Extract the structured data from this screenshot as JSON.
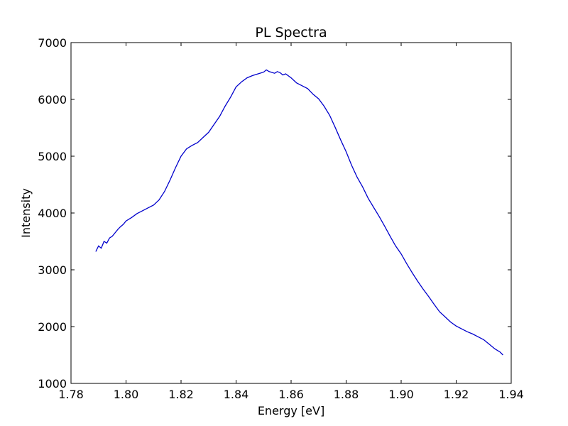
{
  "chart_data": {
    "type": "line",
    "title": "PL Spectra",
    "xlabel": "Energy [eV]",
    "ylabel": "Intensity",
    "xlim": [
      1.78,
      1.94
    ],
    "ylim": [
      1000,
      7000
    ],
    "xticks": [
      "1.78",
      "1.80",
      "1.82",
      "1.84",
      "1.86",
      "1.88",
      "1.90",
      "1.92",
      "1.94"
    ],
    "yticks": [
      "1000",
      "2000",
      "3000",
      "4000",
      "5000",
      "6000",
      "7000"
    ],
    "grid": false,
    "line_color": "#0000cc",
    "series": [
      {
        "x": [
          1.789,
          1.79,
          1.791,
          1.792,
          1.793,
          1.794,
          1.795,
          1.796,
          1.797,
          1.798,
          1.799,
          1.8,
          1.802,
          1.804,
          1.806,
          1.808,
          1.81,
          1.812,
          1.814,
          1.816,
          1.818,
          1.82,
          1.822,
          1.824,
          1.826,
          1.828,
          1.83,
          1.832,
          1.834,
          1.836,
          1.838,
          1.84,
          1.842,
          1.844,
          1.846,
          1.848,
          1.85,
          1.851,
          1.852,
          1.854,
          1.855,
          1.856,
          1.857,
          1.858,
          1.86,
          1.862,
          1.864,
          1.866,
          1.868,
          1.87,
          1.872,
          1.874,
          1.876,
          1.878,
          1.88,
          1.882,
          1.884,
          1.886,
          1.888,
          1.89,
          1.892,
          1.894,
          1.896,
          1.898,
          1.9,
          1.902,
          1.904,
          1.906,
          1.908,
          1.91,
          1.912,
          1.914,
          1.916,
          1.918,
          1.92,
          1.922,
          1.924,
          1.926,
          1.928,
          1.93,
          1.932,
          1.934,
          1.936,
          1.937
        ],
        "y": [
          3320,
          3420,
          3380,
          3500,
          3470,
          3560,
          3590,
          3650,
          3710,
          3760,
          3800,
          3860,
          3920,
          3990,
          4040,
          4090,
          4140,
          4230,
          4380,
          4580,
          4800,
          5000,
          5130,
          5190,
          5240,
          5330,
          5420,
          5560,
          5700,
          5880,
          6040,
          6220,
          6310,
          6380,
          6420,
          6450,
          6480,
          6520,
          6490,
          6460,
          6490,
          6470,
          6430,
          6450,
          6380,
          6290,
          6240,
          6190,
          6090,
          6010,
          5880,
          5720,
          5510,
          5290,
          5080,
          4840,
          4630,
          4460,
          4260,
          4100,
          3940,
          3770,
          3590,
          3420,
          3280,
          3110,
          2950,
          2800,
          2660,
          2530,
          2390,
          2260,
          2170,
          2080,
          2010,
          1960,
          1910,
          1870,
          1820,
          1770,
          1690,
          1610,
          1550,
          1500
        ]
      }
    ]
  }
}
